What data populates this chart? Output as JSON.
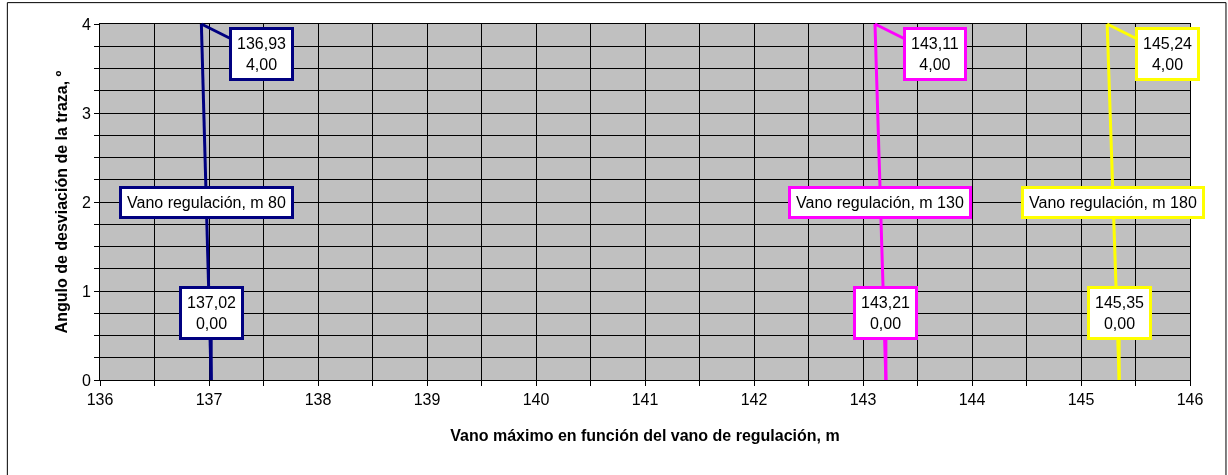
{
  "chart_data": {
    "type": "line",
    "xlabel": "Vano máximo en función del vano de regulación, m",
    "ylabel": "Angulo de desviación de la traza, º",
    "xlim": [
      136,
      146
    ],
    "xticks": [
      136,
      {
        "value": 136.5,
        "label": null
      },
      137,
      {
        "value": 137.5,
        "label": null
      },
      138,
      {
        "value": 138.5,
        "label": null
      },
      139,
      {
        "value": 139.5,
        "label": null
      },
      140,
      {
        "value": 140.5,
        "label": null
      },
      141,
      {
        "value": 141.5,
        "label": null
      },
      142,
      {
        "value": 142.5,
        "label": null
      },
      143,
      {
        "value": 143.5,
        "label": null
      },
      144,
      {
        "value": 144.5,
        "label": null
      },
      145,
      {
        "value": 145.5,
        "label": null
      },
      146
    ],
    "ylim": [
      0,
      4
    ],
    "yticks": [
      0,
      {
        "value": 0.25,
        "label": null
      },
      {
        "value": 0.5,
        "label": null
      },
      {
        "value": 0.75,
        "label": null
      },
      1,
      {
        "value": 1.25,
        "label": null
      },
      {
        "value": 1.5,
        "label": null
      },
      {
        "value": 1.75,
        "label": null
      },
      2,
      {
        "value": 2.25,
        "label": null
      },
      {
        "value": 2.5,
        "label": null
      },
      {
        "value": 2.75,
        "label": null
      },
      3,
      {
        "value": 3.25,
        "label": null
      },
      {
        "value": 3.5,
        "label": null
      },
      {
        "value": 3.75,
        "label": null
      },
      4
    ],
    "grid": true,
    "legend": false,
    "marker": "none",
    "series": [
      {
        "name": "Vano regulación, m 80",
        "color": "#000080",
        "x": [
          136.93,
          137.02
        ],
        "values": [
          4,
          0
        ],
        "value_labels": [
          "136,93\n4,00",
          "137,02\n0,00"
        ]
      },
      {
        "name": "Vano regulación, m 130",
        "color": "#ff00ff",
        "x": [
          143.11,
          143.21
        ],
        "values": [
          4,
          0
        ],
        "value_labels": [
          "143,11\n4,00",
          "143,21\n0,00"
        ]
      },
      {
        "name": "Vano regulación, m 180",
        "color": "#ffff00",
        "x": [
          145.24,
          145.35
        ],
        "values": [
          4,
          0
        ],
        "value_labels": [
          "145,24\n4,00",
          "145,35\n0,00"
        ]
      }
    ]
  }
}
